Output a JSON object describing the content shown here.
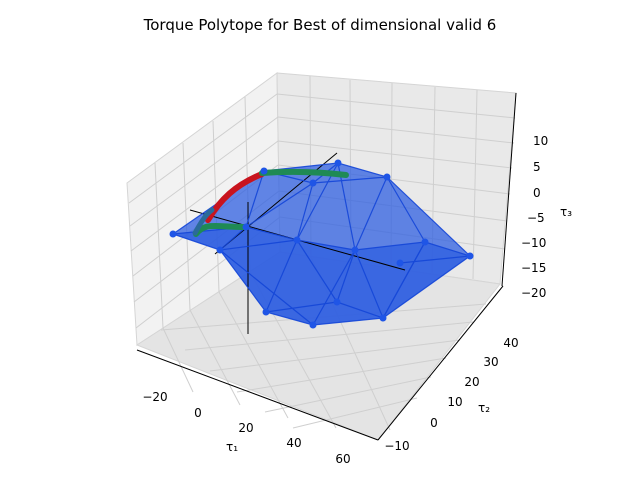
{
  "chart_data": {
    "type": "3d-polytope",
    "title": "Torque Polytope for Best of dimensional valid 6",
    "xlabel": "τ₁",
    "ylabel": "τ₂",
    "zlabel": "τ₃",
    "xlim": [
      -30,
      70
    ],
    "ylim": [
      -15,
      45
    ],
    "zlim": [
      -25,
      12
    ],
    "x_ticks": [
      "−20",
      "0",
      "20",
      "40",
      "60"
    ],
    "y_ticks": [
      "−10",
      "0",
      "10",
      "20",
      "30",
      "40"
    ],
    "z_ticks": [
      "10",
      "5",
      "0",
      "−5",
      "−10",
      "−15",
      "−20"
    ],
    "grid": true,
    "colors": {
      "face": "#2f5fe0",
      "edge": "#1446d8",
      "vertex": "#1f55e6",
      "trajectory_red": "#c8141e",
      "trajectory_green": "#1f8a55",
      "axis_line": "#000000"
    },
    "series": [
      {
        "values": [
          [
            -27,
            3,
            -7
          ],
          [
            -10,
            25,
            5
          ],
          [
            12,
            30,
            5
          ],
          [
            30,
            35,
            0
          ],
          [
            60,
            10,
            -12
          ],
          [
            45,
            -5,
            -10
          ],
          [
            20,
            -12,
            -18
          ],
          [
            -5,
            -12,
            -17
          ]
        ]
      }
    ]
  }
}
